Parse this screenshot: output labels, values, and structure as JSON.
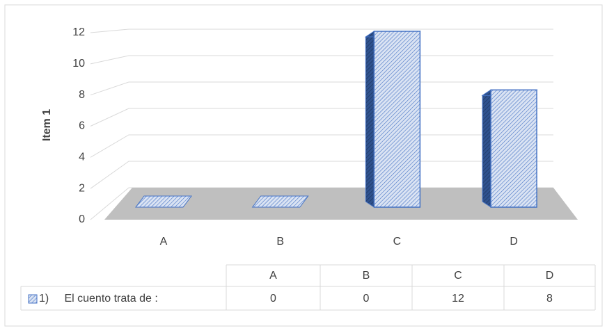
{
  "chart_data": {
    "type": "bar3d",
    "y_label": "Item 1",
    "categories": [
      "A",
      "B",
      "C",
      "D"
    ],
    "series": [
      {
        "name": "1)     El cuento trata de :",
        "color": "#4472c4",
        "values": [
          0,
          0,
          12,
          8
        ]
      }
    ],
    "ylim": [
      0,
      12
    ],
    "yticks": [
      0,
      2,
      4,
      6,
      8,
      10,
      12
    ],
    "grid": true,
    "data_table": true
  }
}
